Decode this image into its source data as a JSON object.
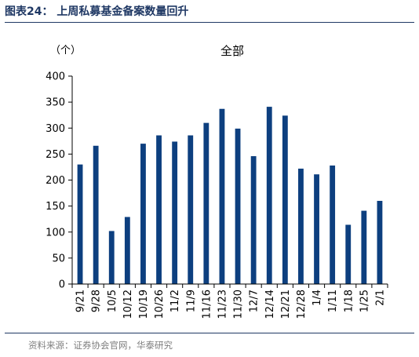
{
  "figure": {
    "label": "图表24：",
    "caption": "上周私募基金备案数量回升",
    "source": "资料来源：证券协会官网，华泰研究"
  },
  "colors": {
    "bar": "#0d3f7f",
    "title": "#1f3864",
    "source": "#7f7f7f"
  },
  "chart_data": {
    "type": "bar",
    "title": "全部",
    "ylabel": "（个）",
    "xlabel": "",
    "categories": [
      "9/21",
      "9/28",
      "10/5",
      "10/12",
      "10/19",
      "10/26",
      "11/2",
      "11/9",
      "11/16",
      "11/23",
      "11/30",
      "12/7",
      "12/14",
      "12/21",
      "12/28",
      "1/4",
      "1/11",
      "1/18",
      "1/25",
      "2/1"
    ],
    "values": [
      230,
      266,
      102,
      129,
      270,
      286,
      274,
      286,
      310,
      337,
      299,
      246,
      341,
      324,
      222,
      211,
      228,
      114,
      141,
      160
    ],
    "ylim": [
      0,
      400
    ],
    "yticks": [
      0,
      50,
      100,
      150,
      200,
      250,
      300,
      350,
      400
    ],
    "grid": false,
    "legend": "none"
  }
}
